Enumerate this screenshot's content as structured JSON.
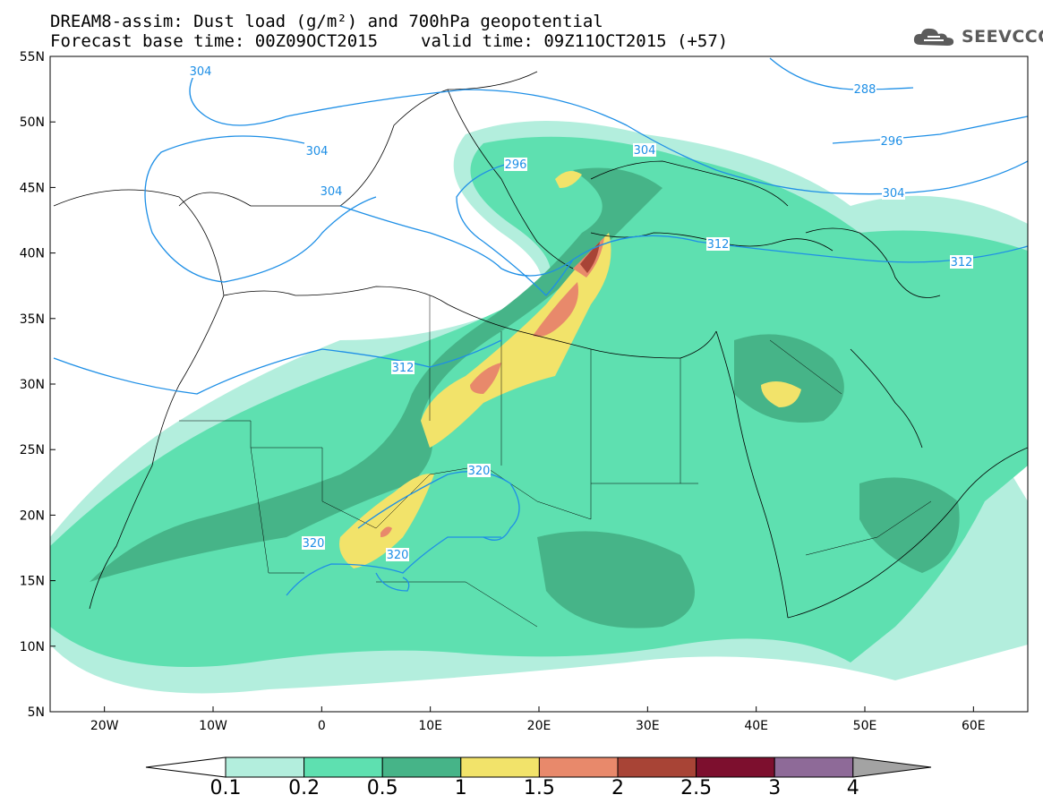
{
  "title": {
    "line1": "DREAM8-assim: Dust load (g/m²) and 700hPa geopotential",
    "base_time": "Forecast base time: 00Z09OCT2015",
    "valid_time": "valid time: 09Z11OCT2015 (+57)"
  },
  "logo": {
    "text": "SEEVCCC",
    "icon": "cloud-icon"
  },
  "map_axes": {
    "lat_ticks": [
      "55N",
      "50N",
      "45N",
      "40N",
      "35N",
      "30N",
      "25N",
      "20N",
      "15N",
      "10N",
      "5N"
    ],
    "lon_ticks": [
      "20W",
      "10W",
      "0",
      "10E",
      "20E",
      "30E",
      "40E",
      "50E",
      "60E"
    ],
    "lat_range": [
      5,
      55
    ],
    "lon_range": [
      -25,
      65
    ]
  },
  "contours": {
    "color": "#1e8fe6",
    "labels": [
      "304",
      "304",
      "304",
      "288",
      "296",
      "296",
      "304",
      "304",
      "312",
      "312",
      "312",
      "320",
      "320",
      "320"
    ]
  },
  "colorbar": {
    "levels": [
      "0.1",
      "0.2",
      "0.5",
      "1",
      "1.5",
      "2",
      "2.5",
      "3",
      "4"
    ],
    "colors": [
      "#b3eedd",
      "#5ee0b0",
      "#46b488",
      "#f2e36a",
      "#e8896b",
      "#a84436",
      "#7d0f2e",
      "#8e6a98"
    ],
    "under_color": "#ffffff",
    "over_color": "#a3a3a3"
  }
}
